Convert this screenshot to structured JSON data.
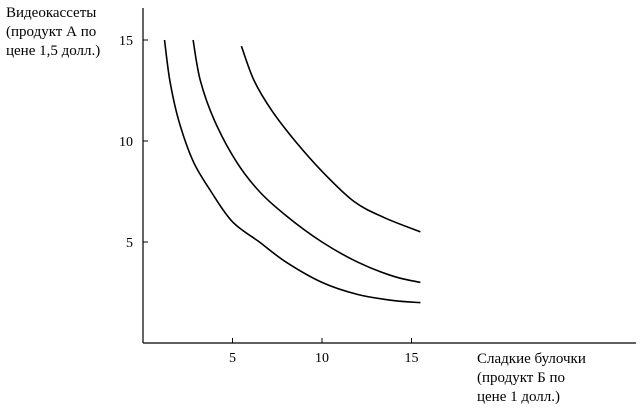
{
  "chart_data": {
    "type": "line",
    "title": "",
    "ylabel_lines": [
      "Видеокассеты",
      "(продукт А по",
      "цене 1,5 долл.)"
    ],
    "xlabel_lines": [
      "Сладкие булочки",
      "(продукт Б по",
      "цене 1 долл.)"
    ],
    "x_ticks": [
      5,
      10,
      15
    ],
    "y_ticks": [
      5,
      10,
      15
    ],
    "xlim": [
      0,
      27
    ],
    "ylim": [
      0,
      16.5
    ],
    "grid": false,
    "legend": "none",
    "series": [
      {
        "points": [
          [
            1.2,
            15
          ],
          [
            1.5,
            13
          ],
          [
            2.0,
            11
          ],
          [
            2.8,
            9
          ],
          [
            3.8,
            7.5
          ],
          [
            5,
            6
          ],
          [
            6.5,
            5
          ],
          [
            8,
            4
          ],
          [
            10,
            3
          ],
          [
            12,
            2.4
          ],
          [
            14,
            2.1
          ],
          [
            15.5,
            2
          ]
        ]
      },
      {
        "points": [
          [
            2.8,
            15
          ],
          [
            3.2,
            13
          ],
          [
            4.0,
            11
          ],
          [
            5.2,
            9
          ],
          [
            6.5,
            7.5
          ],
          [
            8,
            6.3
          ],
          [
            10,
            5
          ],
          [
            12,
            4
          ],
          [
            14,
            3.3
          ],
          [
            15.5,
            3
          ]
        ]
      },
      {
        "points": [
          [
            5.5,
            14.7
          ],
          [
            6.2,
            13
          ],
          [
            7.2,
            11.5
          ],
          [
            8.5,
            10
          ],
          [
            10,
            8.5
          ],
          [
            11.8,
            7
          ],
          [
            13.5,
            6.2
          ],
          [
            15.5,
            5.5
          ]
        ]
      }
    ],
    "colors": {
      "axis": "#000000",
      "curve": "#000000"
    }
  }
}
